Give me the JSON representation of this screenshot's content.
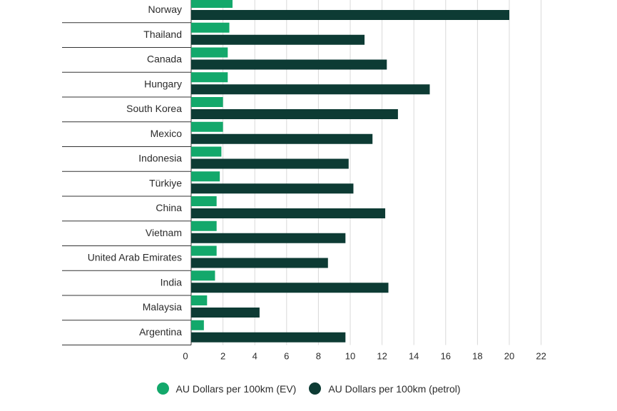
{
  "colors": {
    "ev": "#13a86b",
    "petrol": "#0d3b34",
    "grid": "#d9d9d9",
    "row_line": "#333333"
  },
  "chart_data": {
    "type": "bar",
    "orientation": "horizontal",
    "categories": [
      "Norway",
      "Thailand",
      "Canada",
      "Hungary",
      "South Korea",
      "Mexico",
      "Indonesia",
      "Türkiye",
      "China",
      "Vietnam",
      "United Arab Emirates",
      "India",
      "Malaysia",
      "Argentina"
    ],
    "series": [
      {
        "name": "AU Dollars per 100km (EV)",
        "values": [
          2.6,
          2.4,
          2.3,
          2.3,
          2.0,
          2.0,
          1.9,
          1.8,
          1.6,
          1.6,
          1.6,
          1.5,
          1.0,
          0.8
        ]
      },
      {
        "name": "AU Dollars per 100km (petrol)",
        "values": [
          20.0,
          10.9,
          12.3,
          15.0,
          13.0,
          11.4,
          9.9,
          10.2,
          12.2,
          9.7,
          8.6,
          12.4,
          4.3,
          9.7
        ]
      }
    ],
    "xticks": [
      0,
      2,
      4,
      6,
      8,
      10,
      12,
      14,
      16,
      18,
      20,
      22
    ],
    "xlim": [
      0,
      22
    ],
    "grid": true,
    "legend": "bottom"
  },
  "legend": {
    "ev_label": "AU Dollars per 100km (EV)",
    "petrol_label": "AU Dollars per 100km (petrol)"
  }
}
